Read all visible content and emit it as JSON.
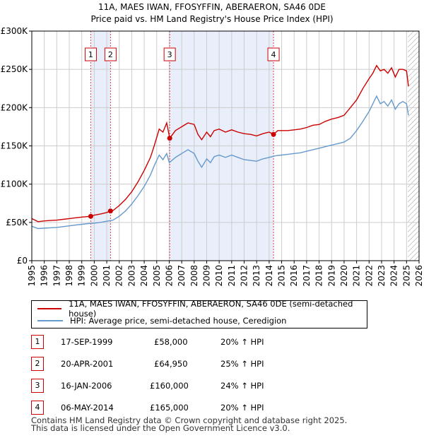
{
  "chart_data": {
    "type": "line",
    "title": "11A, MAES IWAN, FFOSYFFIN, ABERAERON, SA46 0DE",
    "subtitle": "Price paid vs. HM Land Registry's House Price Index (HPI)",
    "xlim": [
      1995,
      2026
    ],
    "ylim": [
      0,
      300000
    ],
    "y_ticks": [
      0,
      50000,
      100000,
      150000,
      200000,
      250000,
      300000
    ],
    "y_tick_labels": [
      "£0",
      "£50K",
      "£100K",
      "£150K",
      "£200K",
      "£250K",
      "£300K"
    ],
    "x_ticks": [
      1995,
      1996,
      1997,
      1998,
      1999,
      2000,
      2001,
      2002,
      2003,
      2004,
      2005,
      2006,
      2007,
      2008,
      2009,
      2010,
      2011,
      2012,
      2013,
      2014,
      2015,
      2016,
      2017,
      2018,
      2019,
      2020,
      2021,
      2022,
      2023,
      2024,
      2025,
      2026
    ],
    "x_tick_labels": [
      "1995",
      "1996",
      "1997",
      "1998",
      "1999",
      "2000",
      "2001",
      "2002",
      "2003",
      "2004",
      "2005",
      "2006",
      "2007",
      "2008",
      "2009",
      "2010",
      "2011",
      "2012",
      "2013",
      "2014",
      "2015",
      "2016",
      "2017",
      "2018",
      "2019",
      "2020",
      "2021",
      "2022",
      "2023",
      "2024",
      "2025",
      "2026"
    ],
    "future_hatch_start": 2025.1,
    "series": [
      {
        "name": "11A, MAES IWAN, FFOSYFFIN, ABERAERON, SA46 0DE (semi-detached house)",
        "color": "#cc0000",
        "x": [
          1995.0,
          1995.5,
          1996.0,
          1996.5,
          1997.0,
          1997.5,
          1998.0,
          1998.5,
          1999.0,
          1999.4,
          1999.72,
          2000.0,
          2000.5,
          2001.0,
          2001.3,
          2001.5,
          2002.0,
          2002.5,
          2003.0,
          2003.5,
          2004.0,
          2004.5,
          2004.8,
          2005.2,
          2005.5,
          2005.8,
          2006.04,
          2006.5,
          2007.0,
          2007.5,
          2008.0,
          2008.3,
          2008.6,
          2009.0,
          2009.3,
          2009.6,
          2010.0,
          2010.5,
          2011.0,
          2011.5,
          2012.0,
          2012.5,
          2013.0,
          2013.5,
          2014.0,
          2014.35,
          2014.7,
          2015.0,
          2015.5,
          2016.0,
          2016.5,
          2017.0,
          2017.5,
          2018.0,
          2018.5,
          2019.0,
          2019.5,
          2020.0,
          2020.5,
          2021.0,
          2021.5,
          2022.0,
          2022.3,
          2022.6,
          2022.9,
          2023.2,
          2023.5,
          2023.8,
          2024.1,
          2024.4,
          2024.7,
          2025.0,
          2025.15
        ],
        "y": [
          55000,
          51000,
          52000,
          52500,
          53000,
          54000,
          55000,
          56000,
          57000,
          57500,
          58000,
          59500,
          61000,
          63000,
          64950,
          65500,
          72000,
          80000,
          90000,
          103000,
          118000,
          135000,
          150000,
          172000,
          168000,
          180000,
          160000,
          170000,
          175000,
          180000,
          178000,
          165000,
          158000,
          168000,
          162000,
          170000,
          172000,
          168000,
          171000,
          168000,
          166000,
          165000,
          163000,
          166000,
          168000,
          165000,
          170000,
          170000,
          170000,
          171000,
          172000,
          174000,
          177000,
          178000,
          182000,
          185000,
          187000,
          190000,
          200000,
          210000,
          225000,
          238000,
          245000,
          255000,
          248000,
          250000,
          245000,
          252000,
          240000,
          250000,
          250000,
          248000,
          228000
        ]
      },
      {
        "name": "HPI: Average price, semi-detached house, Ceredigion",
        "color": "#6699cc",
        "x": [
          1995.0,
          1995.5,
          1996.0,
          1996.5,
          1997.0,
          1997.5,
          1998.0,
          1998.5,
          1999.0,
          1999.5,
          2000.0,
          2000.5,
          2001.0,
          2001.5,
          2002.0,
          2002.5,
          2003.0,
          2003.5,
          2004.0,
          2004.5,
          2004.8,
          2005.2,
          2005.5,
          2005.8,
          2006.0,
          2006.5,
          2007.0,
          2007.5,
          2008.0,
          2008.3,
          2008.6,
          2009.0,
          2009.3,
          2009.6,
          2010.0,
          2010.5,
          2011.0,
          2011.5,
          2012.0,
          2012.5,
          2013.0,
          2013.5,
          2014.0,
          2014.5,
          2015.0,
          2015.5,
          2016.0,
          2016.5,
          2017.0,
          2017.5,
          2018.0,
          2018.5,
          2019.0,
          2019.5,
          2020.0,
          2020.5,
          2021.0,
          2021.5,
          2022.0,
          2022.3,
          2022.6,
          2022.9,
          2023.2,
          2023.5,
          2023.8,
          2024.1,
          2024.4,
          2024.7,
          2025.0,
          2025.15
        ],
        "y": [
          45000,
          42000,
          42500,
          43000,
          43500,
          44500,
          45500,
          46500,
          47500,
          48500,
          49000,
          50000,
          51500,
          53000,
          58000,
          65000,
          74000,
          85000,
          97000,
          112000,
          124000,
          138000,
          132000,
          140000,
          128000,
          135000,
          140000,
          145000,
          140000,
          130000,
          122000,
          133000,
          128000,
          136000,
          138000,
          135000,
          138000,
          135000,
          132000,
          131000,
          130000,
          133000,
          135000,
          137000,
          138000,
          139000,
          140000,
          141000,
          143000,
          145000,
          147000,
          149000,
          151000,
          153000,
          155000,
          160000,
          170000,
          182000,
          195000,
          205000,
          215000,
          205000,
          208000,
          202000,
          210000,
          198000,
          205000,
          208000,
          205000,
          190000
        ]
      }
    ],
    "sale_markers": [
      {
        "label": "1",
        "x": 1999.72,
        "y": 58000
      },
      {
        "label": "2",
        "x": 2001.3,
        "y": 64950
      },
      {
        "label": "3",
        "x": 2006.04,
        "y": 160000
      },
      {
        "label": "4",
        "x": 2014.35,
        "y": 165000
      }
    ],
    "shaded_ranges": [
      [
        1999.72,
        2001.3
      ],
      [
        2006.04,
        2014.35
      ]
    ]
  },
  "legend": {
    "line1": "11A, MAES IWAN, FFOSYFFIN, ABERAERON, SA46 0DE (semi-detached house)",
    "line2": "HPI: Average price, semi-detached house, Ceredigion"
  },
  "sales": [
    {
      "num": "1",
      "date": "17-SEP-1999",
      "price": "£58,000",
      "hpi": "20% ↑ HPI"
    },
    {
      "num": "2",
      "date": "20-APR-2001",
      "price": "£64,950",
      "hpi": "25% ↑ HPI"
    },
    {
      "num": "3",
      "date": "16-JAN-2006",
      "price": "£160,000",
      "hpi": "24% ↑ HPI"
    },
    {
      "num": "4",
      "date": "06-MAY-2014",
      "price": "£165,000",
      "hpi": "20% ↑ HPI"
    }
  ],
  "footer": {
    "line1": "Contains HM Land Registry data © Crown copyright and database right 2025.",
    "line2": "This data is licensed under the Open Government Licence v3.0."
  },
  "colors": {
    "red": "#cc0000",
    "blue": "#6699cc",
    "shade": "#e8eefa",
    "grid": "#cccccc"
  }
}
